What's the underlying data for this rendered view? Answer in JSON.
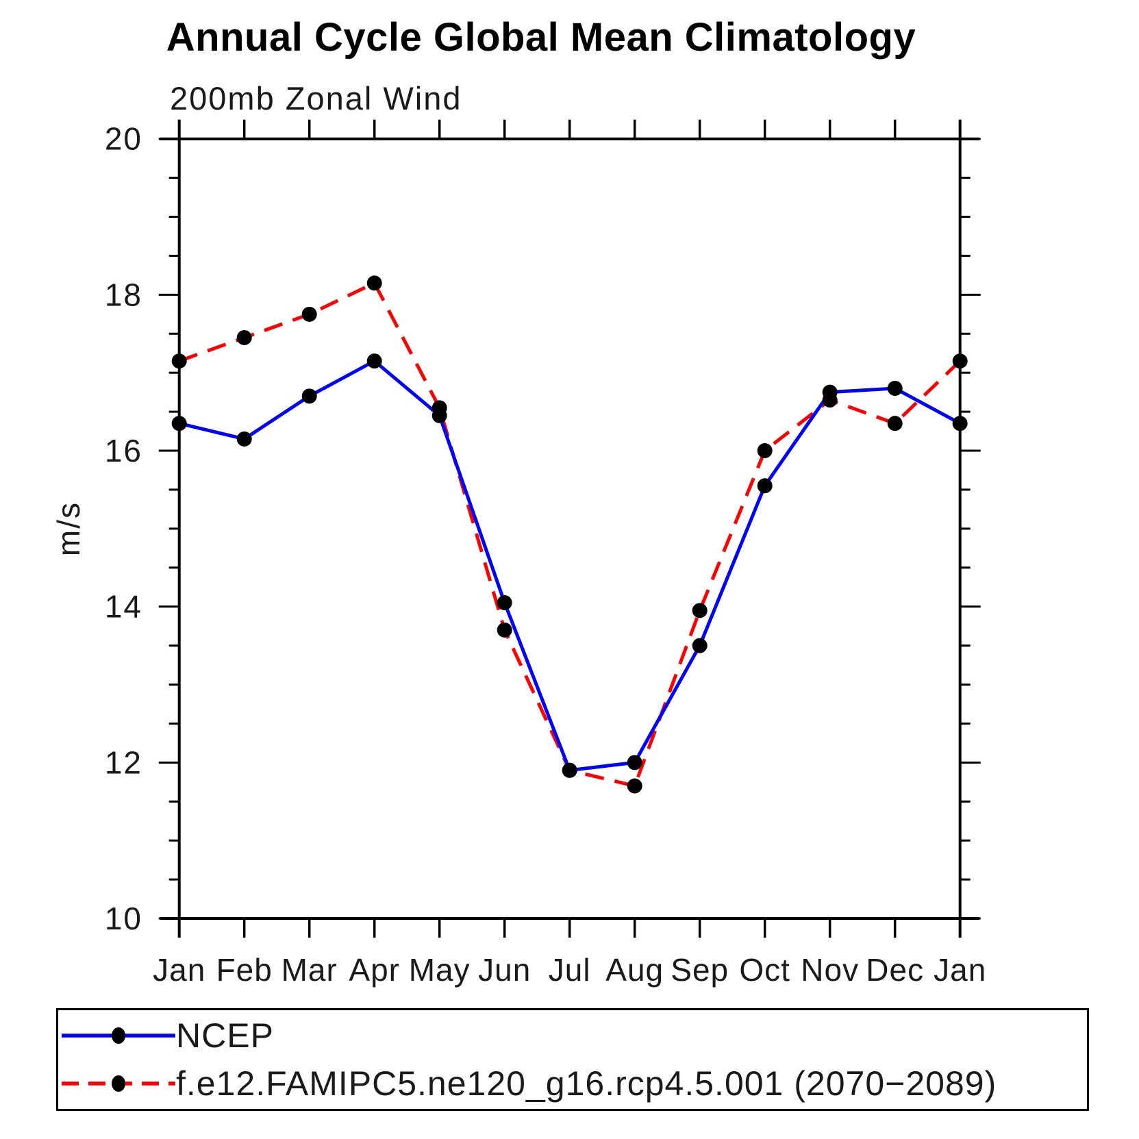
{
  "title": "Annual Cycle Global Mean Climatology",
  "subtitle": "200mb Zonal Wind",
  "y_axis": {
    "unit_label": "m/s"
  },
  "x_axis": {
    "tick_labels": [
      "Jan",
      "Feb",
      "Mar",
      "Apr",
      "May",
      "Jun",
      "Jul",
      "Aug",
      "Sep",
      "Oct",
      "Nov",
      "Dec",
      "Jan"
    ]
  },
  "legend": {
    "items": [
      {
        "label": "NCEP",
        "color": "#0000ff",
        "line_style": "solid",
        "marker": "black-dot"
      },
      {
        "label": "f.e12.FAMIPC5.ne120_g16.rcp4.5.001 (2070−2089)",
        "color": "#ff0000",
        "line_style": "dashed",
        "marker": "black-dot"
      }
    ]
  },
  "chart_data": {
    "type": "line",
    "title": "Annual Cycle Global Mean Climatology",
    "subtitle": "200mb Zonal Wind",
    "xlabel": "",
    "ylabel": "m/s",
    "ylim": [
      10,
      20
    ],
    "y_major_ticks": [
      10,
      12,
      14,
      16,
      18,
      20
    ],
    "y_minor_tick_step": 0.5,
    "grid": false,
    "legend_position": "bottom",
    "marker": "filled-black-circle",
    "categories": [
      "Jan",
      "Feb",
      "Mar",
      "Apr",
      "May",
      "Jun",
      "Jul",
      "Aug",
      "Sep",
      "Oct",
      "Nov",
      "Dec",
      "Jan"
    ],
    "series": [
      {
        "name": "NCEP",
        "color": "#0000ff",
        "line_style": "solid",
        "values": [
          16.35,
          16.15,
          16.7,
          17.15,
          16.45,
          14.05,
          11.9,
          12.0,
          13.5,
          15.55,
          16.75,
          16.8,
          16.35
        ]
      },
      {
        "name": "f.e12.FAMIPC5.ne120_g16.rcp4.5.001 (2070−2089)",
        "color": "#ff0000",
        "line_style": "dashed",
        "values": [
          17.15,
          17.45,
          17.75,
          18.15,
          16.55,
          13.7,
          11.9,
          11.7,
          13.95,
          16.0,
          16.65,
          16.35,
          17.15
        ]
      }
    ]
  }
}
